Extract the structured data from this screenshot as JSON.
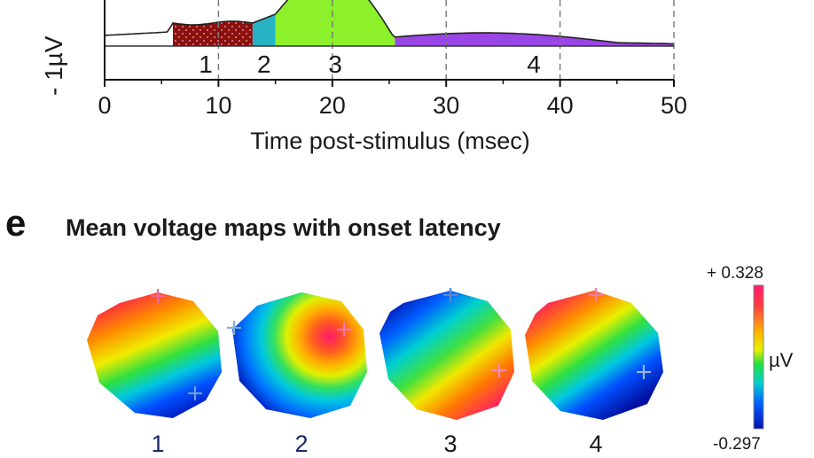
{
  "chart_data": {
    "type": "area",
    "xlabel": "Time post-stimulus (msec)",
    "ylabel": "- 1µV",
    "xlim": [
      0,
      50
    ],
    "x_ticks": [
      "0",
      "10",
      "20",
      "30",
      "40",
      "50"
    ],
    "segments": [
      {
        "label": "1",
        "x_start": 6,
        "x_end": 13,
        "color": "#8b1010"
      },
      {
        "label": "2",
        "x_start": 13,
        "x_end": 15,
        "color": "#27b3c4"
      },
      {
        "label": "3",
        "x_start": 15,
        "x_end": 25.5,
        "color": "#8cf02a"
      },
      {
        "label": "4",
        "x_start": 25.5,
        "x_end": 50,
        "color": "#9a45e6"
      }
    ]
  },
  "panel_e": {
    "letter": "e",
    "title": "Mean voltage maps with onset latency",
    "maps": [
      {
        "label": "1"
      },
      {
        "label": "2"
      },
      {
        "label": "3"
      },
      {
        "label": "4"
      }
    ],
    "colorbar": {
      "max_label": "+ 0.328",
      "min_label": "-0.297",
      "unit": "µV"
    }
  }
}
